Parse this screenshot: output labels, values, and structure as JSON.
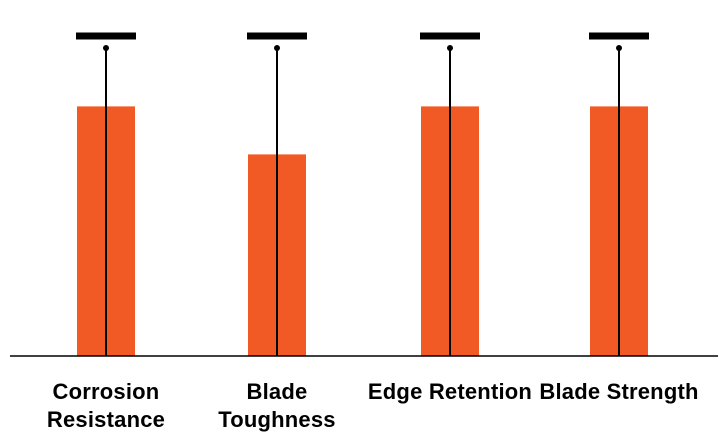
{
  "chart_data": {
    "type": "bar",
    "categories": [
      "Corrosion Resistance",
      "Blade Toughness",
      "Edge Retention",
      "Blade Strength"
    ],
    "values": [
      7.8,
      6.3,
      7.8,
      7.8
    ],
    "color": "#f15a24",
    "ylim": [
      0,
      10
    ]
  }
}
